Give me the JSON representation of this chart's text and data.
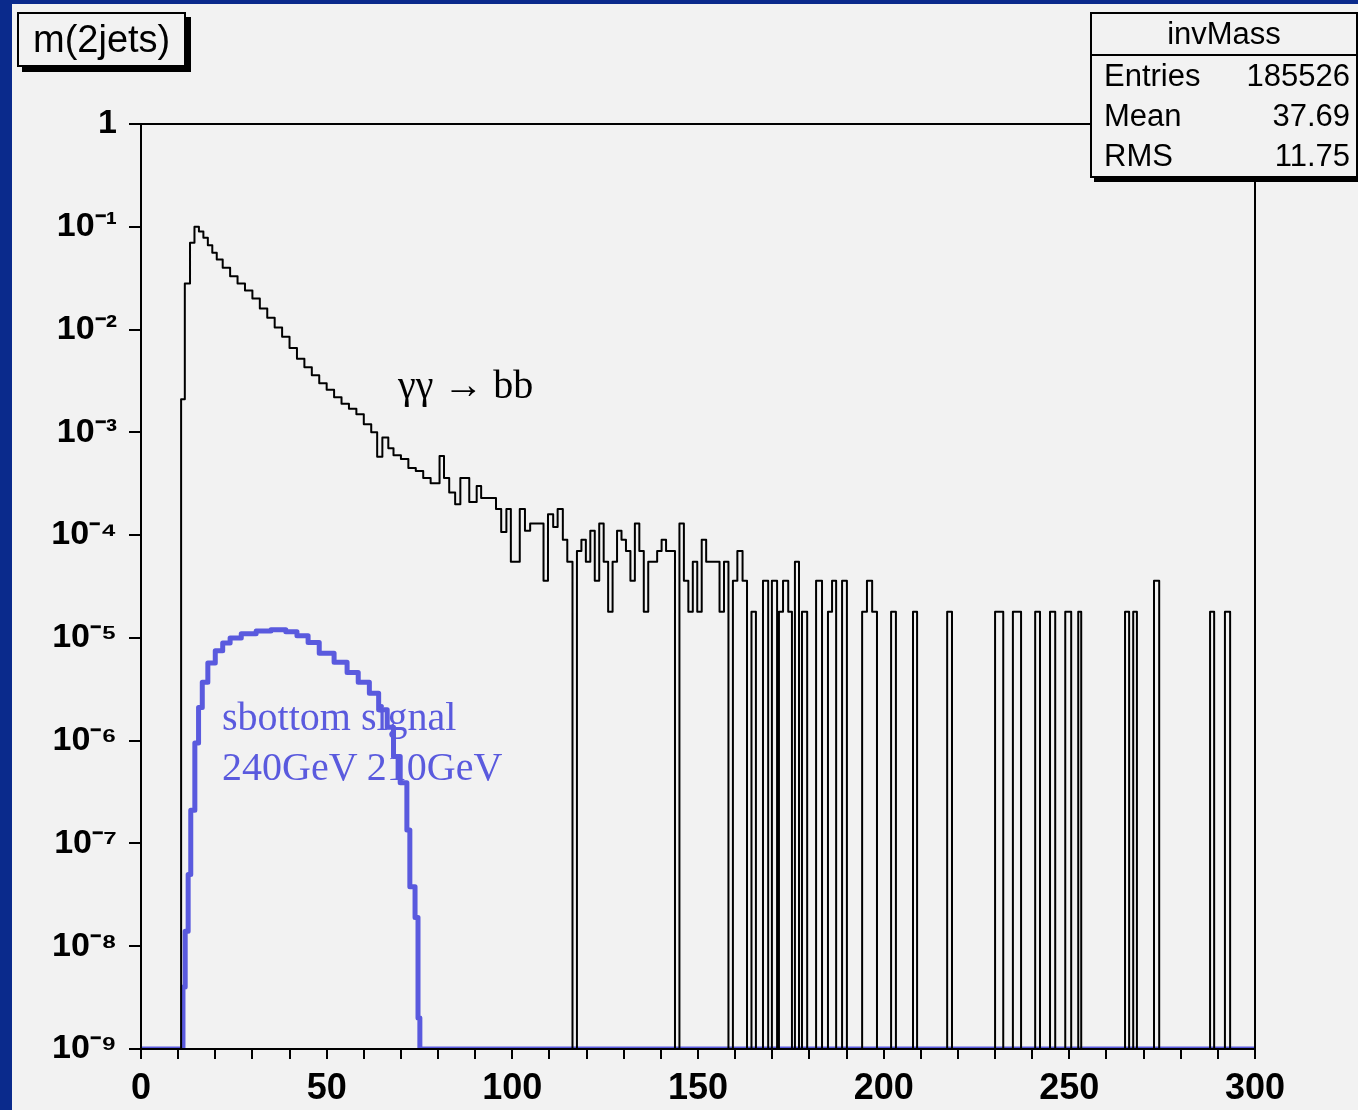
{
  "chart_data": {
    "type": "step",
    "title": "m(2jets)",
    "log": "y",
    "marker": "none",
    "xlim": [
      0,
      300
    ],
    "xticks": [
      0,
      {
        "value": 10,
        "label": null
      },
      {
        "value": 20,
        "label": null
      },
      {
        "value": 30,
        "label": null
      },
      {
        "value": 40,
        "label": null
      },
      50,
      {
        "value": 60,
        "label": null
      },
      {
        "value": 70,
        "label": null
      },
      {
        "value": 80,
        "label": null
      },
      {
        "value": 90,
        "label": null
      },
      100,
      {
        "value": 110,
        "label": null
      },
      {
        "value": 120,
        "label": null
      },
      {
        "value": 130,
        "label": null
      },
      {
        "value": 140,
        "label": null
      },
      150,
      {
        "value": 160,
        "label": null
      },
      {
        "value": 170,
        "label": null
      },
      {
        "value": 180,
        "label": null
      },
      {
        "value": 190,
        "label": null
      },
      200,
      {
        "value": 210,
        "label": null
      },
      {
        "value": 220,
        "label": null
      },
      {
        "value": 230,
        "label": null
      },
      {
        "value": 240,
        "label": null
      },
      250,
      {
        "value": 260,
        "label": null
      },
      {
        "value": 270,
        "label": null
      },
      {
        "value": 280,
        "label": null
      },
      {
        "value": 290,
        "label": null
      },
      300
    ],
    "ylim": [
      1e-09,
      1
    ],
    "yticks": [
      {
        "value": 1e-09,
        "label": "10⁻⁹"
      },
      {
        "value": 1e-08,
        "label": "10⁻⁸"
      },
      {
        "value": 1e-07,
        "label": "10⁻⁷"
      },
      {
        "value": 1e-06,
        "label": "10⁻⁶"
      },
      {
        "value": 1e-05,
        "label": "10⁻⁵"
      },
      {
        "value": 0.0001,
        "label": "10⁻⁴"
      },
      {
        "value": 0.001,
        "label": "10⁻³"
      },
      {
        "value": 0.01,
        "label": "10⁻²"
      },
      {
        "value": 0.1,
        "label": "10⁻¹"
      },
      1
    ],
    "annotations": [
      "invMass",
      "Entries 185526",
      "Mean 37.69",
      "RMS 11.75"
    ],
    "series": [
      {
        "name": "γγ → bb",
        "color": "#000000",
        "x": [
          0,
          10.8,
          11.8,
          13.2,
          14.4,
          15.6,
          16.8,
          18,
          19.2,
          20.4,
          22,
          24,
          26,
          28,
          30,
          32,
          34,
          36,
          38,
          40,
          42,
          44,
          46,
          48,
          50,
          52,
          54,
          56,
          58,
          60,
          62,
          63.6,
          65,
          66.6,
          68,
          70,
          72,
          74,
          76,
          78,
          80.4,
          81.6,
          83,
          84.6,
          86,
          88.4,
          90.4,
          91.6,
          95.6,
          97,
          98.4,
          99.6,
          102,
          103.4,
          104.8,
          108.4,
          109.6,
          111,
          112.2,
          113.6,
          114.8,
          116.2,
          117.4,
          118.6,
          119.8,
          121,
          122.2,
          123.4,
          124.6,
          125.8,
          127,
          128.2,
          129.4,
          130.6,
          131.8,
          133,
          134.2,
          135.4,
          136.6,
          139,
          140.2,
          141.4,
          143.8,
          145,
          146.2,
          147.4,
          148.6,
          149.8,
          151,
          152.2,
          155.8,
          157,
          158.2,
          159.4,
          160.6,
          162,
          163.2,
          164.4,
          165.6,
          167.5,
          168.9,
          169.9,
          171.3,
          171.8,
          172.9,
          174.3,
          175.3,
          176.1,
          177.2,
          178,
          179.4,
          181.8,
          183.4,
          185,
          186.1,
          187.2,
          188.8,
          190.1,
          194.2,
          195.5,
          196.9,
          198.2,
          202,
          203.3,
          207.9,
          209,
          217.1,
          218.4,
          230,
          232.2,
          234.8,
          237,
          240.8,
          242.1,
          244.8,
          246.2,
          248.9,
          250.5,
          252.4,
          253.2,
          265,
          266.1,
          267.2,
          268.2,
          272.8,
          274.2,
          287.9,
          289,
          291.9,
          293.3,
          300
        ],
        "values": [
          1e-09,
          0.0021,
          0.028,
          0.07,
          0.1,
          0.09,
          0.078,
          0.066,
          0.056,
          0.048,
          0.04,
          0.033,
          0.028,
          0.024,
          0.02,
          0.016,
          0.013,
          0.0105,
          0.0085,
          0.0066,
          0.0052,
          0.0043,
          0.0036,
          0.003,
          0.0026,
          0.0022,
          0.0019,
          0.0017,
          0.0015,
          0.0012,
          0.001,
          0.00058,
          0.00089,
          0.0007,
          0.0006,
          0.00055,
          0.00045,
          0.00042,
          0.00036,
          0.00032,
          0.00059,
          0.00036,
          0.00026,
          0.0002,
          0.00036,
          0.00021,
          0.0003,
          0.00023,
          0.00018,
          0.000107,
          0.00018,
          5.5e-05,
          0.00018,
          0.00011,
          0.00013,
          3.6e-05,
          0.00016,
          0.00012,
          0.00018,
          9e-05,
          5.5e-05,
          1e-09,
          7e-05,
          9e-05,
          5.5e-05,
          0.00011,
          3.6e-05,
          0.00013,
          5.5e-05,
          1.8e-05,
          5.5e-05,
          0.00011,
          9e-05,
          7e-05,
          3.6e-05,
          0.00013,
          7e-05,
          1.8e-05,
          5.5e-05,
          7e-05,
          9e-05,
          7e-05,
          1e-09,
          0.00013,
          3.6e-05,
          1.8e-05,
          5.5e-05,
          1.8e-05,
          9e-05,
          5.5e-05,
          1.8e-05,
          5.5e-05,
          1e-09,
          3.6e-05,
          7e-05,
          3.6e-05,
          1e-09,
          1.8e-05,
          1e-09,
          3.6e-05,
          1e-09,
          3.6e-05,
          1e-09,
          1.8e-05,
          3.6e-05,
          1.8e-05,
          1e-09,
          5.5e-05,
          1e-09,
          1.8e-05,
          1e-09,
          3.6e-05,
          1e-09,
          1.8e-05,
          3.6e-05,
          1e-09,
          3.6e-05,
          1e-09,
          1.8e-05,
          3.6e-05,
          1.8e-05,
          1e-09,
          1.8e-05,
          1e-09,
          1.8e-05,
          1e-09,
          1.8e-05,
          1e-09,
          1.8e-05,
          1e-09,
          1.8e-05,
          1e-09,
          1.8e-05,
          1e-09,
          1.8e-05,
          1e-09,
          1.8e-05,
          1e-09,
          1.8e-05,
          1e-09,
          1.8e-05,
          1e-09,
          1.8e-05,
          1e-09,
          3.6e-05,
          1e-09,
          1.8e-05,
          1e-09,
          1.8e-05,
          1e-09,
          1e-09
        ]
      },
      {
        "name": "sbottom signal 240GeV 210GeV",
        "color": "#5a5ade",
        "x": [
          0,
          11.3,
          11.9,
          12.7,
          13.4,
          14.5,
          15.5,
          16.5,
          18,
          20,
          22,
          24,
          27,
          31,
          35,
          39,
          42,
          45,
          48,
          52,
          55.5,
          58.5,
          61.5,
          64,
          66.3,
          68,
          69.8,
          71.6,
          72.4,
          73.8,
          74.6,
          75.1,
          300
        ],
        "values": [
          1e-09,
          4e-09,
          1.4e-08,
          5e-08,
          2.1e-07,
          9.5e-07,
          2.1e-06,
          3.7e-06,
          5.7e-06,
          7.5e-06,
          8.9e-06,
          1e-05,
          1.1e-05,
          1.17e-05,
          1.2e-05,
          1.15e-05,
          1.05e-05,
          9e-06,
          7.1e-06,
          5.8e-06,
          4.6e-06,
          3.7e-06,
          2.9e-06,
          2e-06,
          1.35e-06,
          7e-07,
          3.9e-07,
          1.35e-07,
          3.8e-08,
          1.9e-08,
          2e-09,
          1e-09,
          1e-09
        ]
      }
    ]
  }
}
